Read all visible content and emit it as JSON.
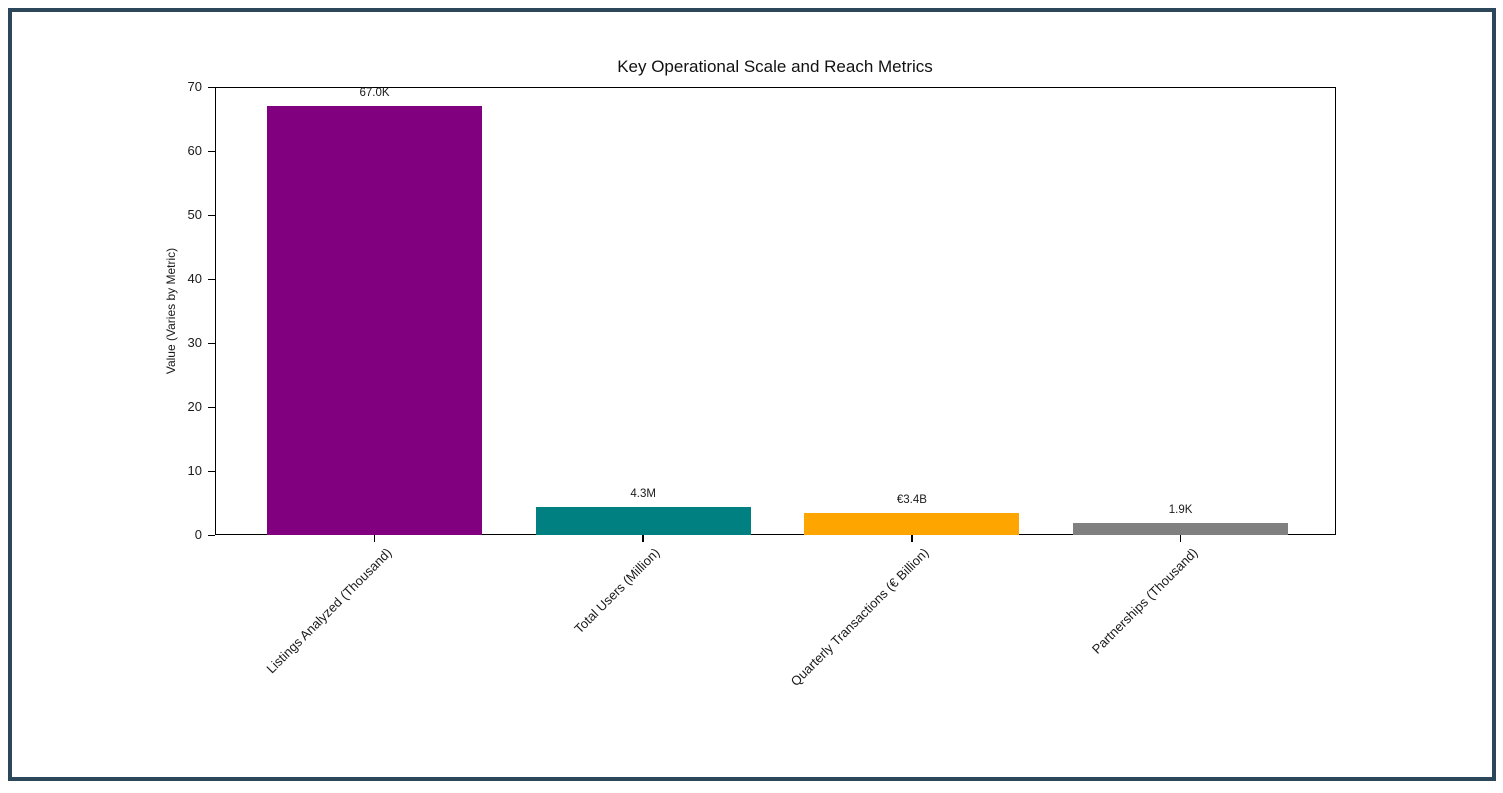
{
  "window": {
    "background": "#ffffff",
    "frame_color": "#2b4759"
  },
  "chart_data": {
    "type": "bar",
    "title": "Key Operational Scale and Reach Metrics",
    "xlabel": "",
    "ylabel": "Value (Varies by Metric)",
    "categories": [
      "Listings Analyzed (Thousand)",
      "Total Users (Million)",
      "Quarterly Transactions (€ Billion)",
      "Partnerships (Thousand)"
    ],
    "values": [
      67.0,
      4.3,
      3.4,
      1.9
    ],
    "bar_labels": [
      "67.0K",
      "4.3M",
      "€3.4B",
      "1.9K"
    ],
    "colors": [
      "#800080",
      "#008080",
      "#FFA500",
      "#808080"
    ],
    "ylim": [
      0,
      70
    ],
    "yticks": [
      0,
      10,
      20,
      30,
      40,
      50,
      60,
      70
    ],
    "grid": false,
    "legend_position": "none"
  }
}
